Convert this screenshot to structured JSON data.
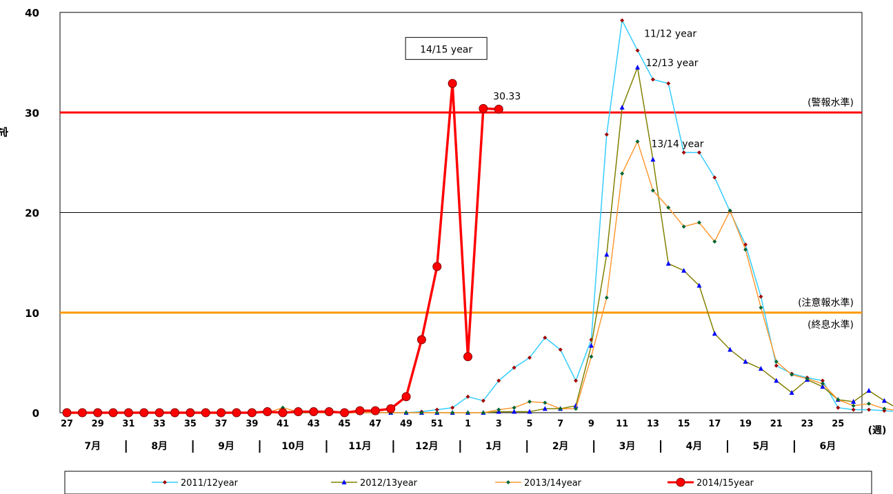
{
  "chart_data": {
    "type": "line",
    "ylabel": "定点あたりの患者数(人)",
    "xunit": "(週)",
    "ylim": [
      0,
      40
    ],
    "yticks": [
      "0",
      "10",
      "20",
      "30",
      "40"
    ],
    "x_labels": [
      "27",
      "29",
      "31",
      "33",
      "35",
      "37",
      "39",
      "41",
      "43",
      "45",
      "47",
      "49",
      "51",
      "1",
      "3",
      "5",
      "7",
      "9",
      "11",
      "13",
      "15",
      "17",
      "19",
      "21",
      "23",
      "25"
    ],
    "months": [
      "7月",
      "8月",
      "9月",
      "10月",
      "11月",
      "12月",
      "1月",
      "2月",
      "3月",
      "4月",
      "5月",
      "6月"
    ],
    "reference_lines": [
      {
        "value": 30,
        "label": "(警報水準)",
        "color": "#ff0000"
      },
      {
        "value": 10,
        "label": "(注意報水準)",
        "label2": "(終息水準)",
        "color": "#ff9900"
      }
    ],
    "series": [
      {
        "name": "2011/12year",
        "color": "#33ccff",
        "marker": "diamond",
        "marker_color": "#a00000",
        "values": [
          0,
          0,
          0,
          0,
          0,
          0,
          0,
          0,
          0,
          0,
          0,
          0,
          0,
          0,
          0,
          0,
          0,
          0,
          0,
          0,
          0,
          0,
          0,
          0.1,
          0.3,
          0.5,
          1.6,
          1.2,
          3.2,
          4.5,
          5.5,
          7.5,
          6.3,
          3.2,
          7.3,
          27.8,
          39.2,
          36.2,
          33.3,
          32.9,
          26.0,
          26.0,
          23.5,
          20.1,
          16.8,
          11.6,
          4.7,
          3.9,
          3.5,
          3.2,
          0.5,
          0.3,
          0.3,
          0.2,
          0.1,
          0.1,
          0.1,
          0.0
        ]
      },
      {
        "name": "2012/13year",
        "color": "#808000",
        "marker": "triangle",
        "marker_color": "#0000ff",
        "values": [
          0,
          0,
          0,
          0,
          0,
          0,
          0,
          0,
          0,
          0,
          0,
          0,
          0,
          0,
          0,
          0,
          0,
          0,
          0,
          0,
          0,
          0,
          0,
          0,
          0,
          0,
          0,
          0,
          0.1,
          0.1,
          0.1,
          0.4,
          0.4,
          0.7,
          6.7,
          15.8,
          30.5,
          34.5,
          25.3,
          14.9,
          14.2,
          12.7,
          7.9,
          6.3,
          5.1,
          4.4,
          3.2,
          2.0,
          3.3,
          2.6,
          1.3,
          1.1,
          2.2,
          1.2,
          0.3,
          0.5,
          0.5,
          0.1
        ]
      },
      {
        "name": "2013/14year",
        "color": "#ff9933",
        "marker": "diamond",
        "marker_color": "#006633",
        "values": [
          0,
          0,
          0,
          0,
          0,
          0,
          0,
          0,
          0,
          0,
          0,
          0,
          0,
          0,
          0.5,
          0.1,
          0,
          0,
          0,
          0,
          0,
          0,
          0,
          0,
          0,
          0,
          0,
          0,
          0.3,
          0.5,
          1.1,
          1.0,
          0.4,
          0.4,
          5.6,
          11.5,
          23.9,
          27.1,
          22.2,
          20.5,
          18.6,
          19.0,
          17.1,
          20.2,
          16.3,
          10.5,
          5.1,
          3.8,
          3.4,
          2.9,
          1.3,
          0.7,
          0.9,
          0.4,
          0.2,
          0.1,
          0.1,
          0.0
        ]
      },
      {
        "name": "2014/15year",
        "color": "#ff0000",
        "marker": "circle",
        "marker_color": "#ff0000",
        "values": [
          0,
          0,
          0,
          0,
          0,
          0,
          0,
          0,
          0,
          0,
          0,
          0,
          0,
          0.1,
          0,
          0.1,
          0.1,
          0.1,
          0,
          0.2,
          0.2,
          0.4,
          1.6,
          7.3,
          14.6,
          32.9,
          5.6,
          30.4,
          30.33
        ]
      }
    ],
    "annotations": [
      {
        "text": "11/12 year",
        "series": 0,
        "index": 36
      },
      {
        "text": "12/13 year",
        "series": 1,
        "index": 37
      },
      {
        "text": "13/14 year",
        "series": 2,
        "index": 37
      },
      {
        "text": "30.33",
        "series": 3,
        "index": 28
      },
      {
        "text": "14/15 year",
        "series": 3,
        "index": 25,
        "boxed": true
      }
    ],
    "legend": {
      "position": "bottom"
    }
  }
}
